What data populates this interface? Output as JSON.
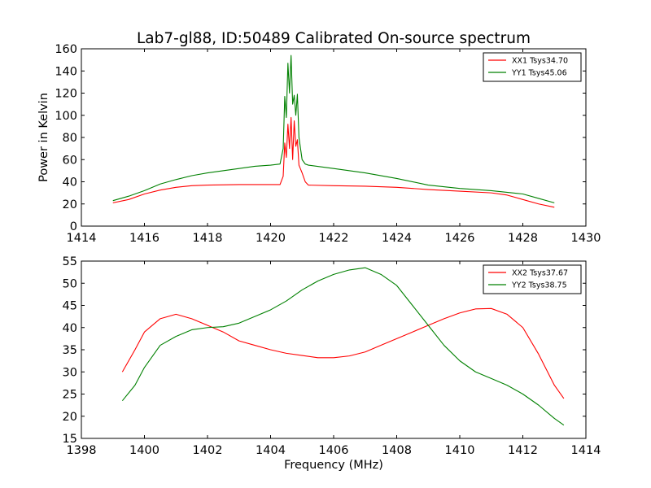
{
  "figure": {
    "title": "Lab7-gl88, ID:50489 Calibrated On-source spectrum"
  },
  "chart_data": [
    {
      "type": "line",
      "title": "Lab7-gl88, ID:50489 Calibrated On-source spectrum",
      "xlabel": "",
      "ylabel": "Power in Kelvin",
      "xlim": [
        1414,
        1430
      ],
      "ylim": [
        0,
        160
      ],
      "xticks": [
        1414,
        1416,
        1418,
        1420,
        1422,
        1424,
        1426,
        1428,
        1430
      ],
      "yticks": [
        0,
        20,
        40,
        60,
        80,
        100,
        120,
        140,
        160
      ],
      "grid": false,
      "legend_position": "top-right",
      "series": [
        {
          "name": "XX1 Tsys34.70",
          "color": "#ff0000",
          "points": [
            [
              1415.0,
              21
            ],
            [
              1415.5,
              24
            ],
            [
              1416.0,
              29
            ],
            [
              1416.5,
              32.5
            ],
            [
              1417.0,
              35
            ],
            [
              1417.5,
              36.5
            ],
            [
              1418.0,
              37
            ],
            [
              1419.0,
              37.5
            ],
            [
              1420.0,
              37.5
            ],
            [
              1420.3,
              37.5
            ],
            [
              1420.4,
              45
            ],
            [
              1420.45,
              75
            ],
            [
              1420.5,
              62
            ],
            [
              1420.55,
              92
            ],
            [
              1420.6,
              70
            ],
            [
              1420.65,
              98
            ],
            [
              1420.7,
              60
            ],
            [
              1420.75,
              95
            ],
            [
              1420.8,
              72
            ],
            [
              1420.85,
              78
            ],
            [
              1420.9,
              55
            ],
            [
              1421.0,
              48
            ],
            [
              1421.1,
              40
            ],
            [
              1421.2,
              37
            ],
            [
              1422.0,
              36.5
            ],
            [
              1423.0,
              36
            ],
            [
              1424.0,
              35
            ],
            [
              1425.0,
              33
            ],
            [
              1426.0,
              31.5
            ],
            [
              1427.0,
              30
            ],
            [
              1427.5,
              28
            ],
            [
              1428.0,
              24
            ],
            [
              1428.5,
              20
            ],
            [
              1429.0,
              17
            ]
          ]
        },
        {
          "name": "YY1 Tsys45.06",
          "color": "#008000",
          "points": [
            [
              1415.0,
              23
            ],
            [
              1415.5,
              27
            ],
            [
              1416.0,
              32
            ],
            [
              1416.5,
              38
            ],
            [
              1417.0,
              42
            ],
            [
              1417.5,
              45.5
            ],
            [
              1418.0,
              48
            ],
            [
              1419.0,
              52
            ],
            [
              1419.5,
              54
            ],
            [
              1420.0,
              55
            ],
            [
              1420.3,
              56
            ],
            [
              1420.4,
              70
            ],
            [
              1420.45,
              117
            ],
            [
              1420.5,
              98
            ],
            [
              1420.55,
              147
            ],
            [
              1420.6,
              120
            ],
            [
              1420.65,
              154
            ],
            [
              1420.7,
              110
            ],
            [
              1420.75,
              118
            ],
            [
              1420.8,
              100
            ],
            [
              1420.85,
              119
            ],
            [
              1420.9,
              80
            ],
            [
              1421.0,
              60
            ],
            [
              1421.1,
              56
            ],
            [
              1421.2,
              55
            ],
            [
              1422.0,
              52
            ],
            [
              1423.0,
              48
            ],
            [
              1424.0,
              43
            ],
            [
              1425.0,
              37
            ],
            [
              1426.0,
              34
            ],
            [
              1427.0,
              32
            ],
            [
              1428.0,
              29
            ],
            [
              1428.5,
              25
            ],
            [
              1429.0,
              21
            ]
          ]
        }
      ]
    },
    {
      "type": "line",
      "title": "",
      "xlabel": "Frequency (MHz)",
      "ylabel": "",
      "xlim": [
        1398,
        1414
      ],
      "ylim": [
        15,
        55
      ],
      "xticks": [
        1398,
        1400,
        1402,
        1404,
        1406,
        1408,
        1410,
        1412,
        1414
      ],
      "yticks": [
        15,
        20,
        25,
        30,
        35,
        40,
        45,
        50,
        55
      ],
      "grid": false,
      "legend_position": "top-right",
      "series": [
        {
          "name": "XX2 Tsys37.67",
          "color": "#ff0000",
          "points": [
            [
              1399.3,
              30
            ],
            [
              1399.7,
              35
            ],
            [
              1400.0,
              39
            ],
            [
              1400.5,
              42
            ],
            [
              1401.0,
              43
            ],
            [
              1401.5,
              42
            ],
            [
              1402.0,
              40.5
            ],
            [
              1402.5,
              39
            ],
            [
              1403.0,
              37
            ],
            [
              1403.5,
              36
            ],
            [
              1404.0,
              35
            ],
            [
              1404.5,
              34.2
            ],
            [
              1405.0,
              33.7
            ],
            [
              1405.5,
              33.2
            ],
            [
              1406.0,
              33.2
            ],
            [
              1406.5,
              33.6
            ],
            [
              1407.0,
              34.5
            ],
            [
              1407.5,
              36
            ],
            [
              1408.0,
              37.5
            ],
            [
              1408.5,
              39
            ],
            [
              1409.0,
              40.5
            ],
            [
              1409.5,
              42
            ],
            [
              1410.0,
              43.3
            ],
            [
              1410.5,
              44.2
            ],
            [
              1411.0,
              44.3
            ],
            [
              1411.5,
              43
            ],
            [
              1412.0,
              40
            ],
            [
              1412.5,
              34
            ],
            [
              1413.0,
              27
            ],
            [
              1413.3,
              24
            ]
          ]
        },
        {
          "name": "YY2 Tsys38.75",
          "color": "#008000",
          "points": [
            [
              1399.3,
              23.5
            ],
            [
              1399.7,
              27
            ],
            [
              1400.0,
              31
            ],
            [
              1400.5,
              36
            ],
            [
              1401.0,
              38
            ],
            [
              1401.5,
              39.5
            ],
            [
              1402.0,
              40
            ],
            [
              1402.5,
              40.2
            ],
            [
              1403.0,
              41
            ],
            [
              1403.5,
              42.5
            ],
            [
              1404.0,
              44
            ],
            [
              1404.5,
              46
            ],
            [
              1405.0,
              48.5
            ],
            [
              1405.5,
              50.5
            ],
            [
              1406.0,
              52
            ],
            [
              1406.5,
              53
            ],
            [
              1407.0,
              53.5
            ],
            [
              1407.5,
              52
            ],
            [
              1408.0,
              49.5
            ],
            [
              1408.5,
              45
            ],
            [
              1409.0,
              40.5
            ],
            [
              1409.5,
              36
            ],
            [
              1410.0,
              32.5
            ],
            [
              1410.5,
              30
            ],
            [
              1411.0,
              28.5
            ],
            [
              1411.5,
              27
            ],
            [
              1412.0,
              25
            ],
            [
              1412.5,
              22.5
            ],
            [
              1413.0,
              19.5
            ],
            [
              1413.3,
              18
            ]
          ]
        }
      ]
    }
  ]
}
